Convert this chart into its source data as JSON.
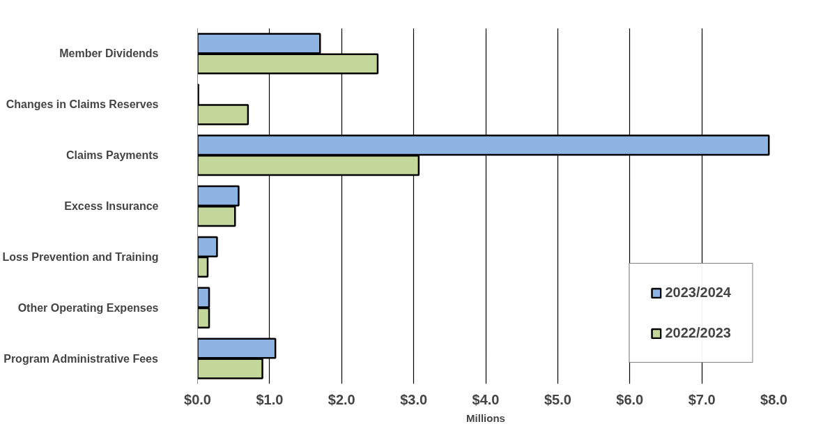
{
  "chart_data": {
    "type": "bar",
    "orientation": "horizontal",
    "xlabel": "Millions",
    "categories": [
      "Member Dividends",
      "Changes in Claims Reserves",
      "Claims Payments",
      "Excess Insurance",
      "Loss Prevention and Training",
      "Other Operating Expenses",
      "Program Administrative Fees"
    ],
    "series": [
      {
        "name": "2023/2024",
        "color": "#8eb4e3",
        "values": [
          1.7,
          0.01,
          7.93,
          0.57,
          0.27,
          0.16,
          1.08
        ]
      },
      {
        "name": "2022/2023",
        "color": "#c4d79b",
        "values": [
          2.5,
          0.7,
          3.07,
          0.52,
          0.14,
          0.16,
          0.9
        ]
      }
    ],
    "xlim": [
      0,
      8
    ],
    "xticks": [
      {
        "value": 0,
        "label": "$0.0"
      },
      {
        "value": 1,
        "label": "$1.0"
      },
      {
        "value": 2,
        "label": "$2.0"
      },
      {
        "value": 3,
        "label": "$3.0"
      },
      {
        "value": 4,
        "label": "$4.0"
      },
      {
        "value": 5,
        "label": "$5.0"
      },
      {
        "value": 6,
        "label": "$6.0"
      },
      {
        "value": 7,
        "label": "$7.0"
      },
      {
        "value": 8,
        "label": "$8.0"
      }
    ],
    "grid": "x",
    "legend": "bottom right"
  }
}
